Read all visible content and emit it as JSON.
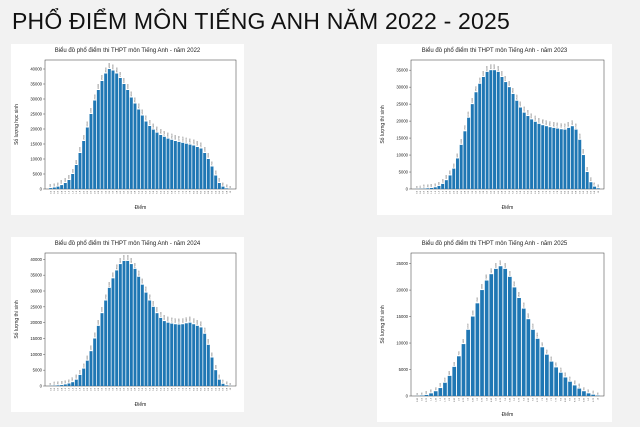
{
  "page_title": "PHỔ ĐIỂM MÔN TIẾNG ANH NĂM 2022 - 2025",
  "colors": {
    "bar": "#1f77b4",
    "background": "#f2f2f2",
    "panel": "#ffffff"
  },
  "chart_data": [
    {
      "type": "bar",
      "title": "Biểu đồ phổ điểm thi THPT môn Tiếng Anh - năm 2022",
      "xlabel": "Điểm",
      "ylabel": "Số lượng học sinh",
      "ylim": [
        0,
        43000
      ],
      "yticks": [
        0,
        5000,
        10000,
        15000,
        20000,
        25000,
        30000,
        35000,
        40000
      ],
      "categories": [
        "0.2",
        "0.4",
        "0.6",
        "0.8",
        "1.0",
        "1.2",
        "1.4",
        "1.6",
        "1.8",
        "2.0",
        "2.2",
        "2.4",
        "2.6",
        "2.8",
        "3.0",
        "3.2",
        "3.4",
        "3.6",
        "3.8",
        "4.0",
        "4.2",
        "4.4",
        "4.6",
        "4.8",
        "5.0",
        "5.2",
        "5.4",
        "5.6",
        "5.8",
        "6.0",
        "6.2",
        "6.4",
        "6.6",
        "6.8",
        "7.0",
        "7.2",
        "7.4",
        "7.6",
        "7.8",
        "8.0",
        "8.2",
        "8.4",
        "8.6",
        "8.8",
        "9.0",
        "9.2",
        "9.4",
        "9.6",
        "9.8",
        "10"
      ],
      "values": [
        300,
        500,
        800,
        1300,
        2000,
        3000,
        5000,
        8000,
        12000,
        16000,
        20500,
        25000,
        29500,
        33000,
        36000,
        38500,
        40000,
        39500,
        38500,
        37000,
        35000,
        33000,
        30500,
        28500,
        26500,
        24500,
        22500,
        21000,
        19800,
        18800,
        18000,
        17400,
        16800,
        16400,
        16000,
        15700,
        15400,
        15100,
        14800,
        14500,
        14000,
        13500,
        12000,
        10000,
        7500,
        4500,
        2000,
        800,
        200,
        30
      ],
      "grid": false
    },
    {
      "type": "bar",
      "title": "Biểu đồ phổ điểm thi THPT môn Tiếng Anh - năm 2023",
      "xlabel": "Điểm",
      "ylabel": "Số lượng thí sinh",
      "ylim": [
        0,
        38000
      ],
      "yticks": [
        0,
        5000,
        10000,
        15000,
        20000,
        25000,
        30000,
        35000
      ],
      "categories": [
        "0.2",
        "0.4",
        "0.6",
        "0.8",
        "1.0",
        "1.2",
        "1.4",
        "1.6",
        "1.8",
        "2.0",
        "2.2",
        "2.4",
        "2.6",
        "2.8",
        "3.0",
        "3.2",
        "3.4",
        "3.6",
        "3.8",
        "4.0",
        "4.2",
        "4.4",
        "4.6",
        "4.8",
        "5.0",
        "5.2",
        "5.4",
        "5.6",
        "5.8",
        "6.0",
        "6.2",
        "6.4",
        "6.6",
        "6.8",
        "7.0",
        "7.2",
        "7.4",
        "7.6",
        "7.8",
        "8.0",
        "8.2",
        "8.4",
        "8.6",
        "8.8",
        "9.0",
        "9.2",
        "9.4",
        "9.6",
        "9.8",
        "10"
      ],
      "values": [
        30,
        60,
        100,
        200,
        300,
        500,
        900,
        1500,
        2600,
        4000,
        6000,
        9000,
        13000,
        17000,
        21000,
        25000,
        28500,
        31000,
        33000,
        34500,
        35000,
        35000,
        34500,
        33000,
        31500,
        30000,
        28000,
        26000,
        24000,
        22500,
        21500,
        20500,
        19800,
        19200,
        18800,
        18500,
        18200,
        18000,
        17800,
        17600,
        17500,
        18000,
        18500,
        17500,
        14500,
        10000,
        5000,
        2000,
        700,
        200
      ],
      "grid": false
    },
    {
      "type": "bar",
      "title": "Biểu đồ phổ điểm thi THPT môn Tiếng Anh - năm 2024",
      "xlabel": "Điểm",
      "ylabel": "Số lượng thí sinh",
      "ylim": [
        0,
        42000
      ],
      "yticks": [
        0,
        5000,
        10000,
        15000,
        20000,
        25000,
        30000,
        35000,
        40000
      ],
      "categories": [
        "0.2",
        "0.4",
        "0.6",
        "0.8",
        "1.0",
        "1.2",
        "1.4",
        "1.6",
        "1.8",
        "2.0",
        "2.2",
        "2.4",
        "2.6",
        "2.8",
        "3.0",
        "3.2",
        "3.4",
        "3.6",
        "3.8",
        "4.0",
        "4.2",
        "4.4",
        "4.6",
        "4.8",
        "5.0",
        "5.2",
        "5.4",
        "5.6",
        "5.8",
        "6.0",
        "6.2",
        "6.4",
        "6.6",
        "6.8",
        "7.0",
        "7.2",
        "7.4",
        "7.6",
        "7.8",
        "8.0",
        "8.2",
        "8.4",
        "8.6",
        "8.8",
        "9.0",
        "9.2",
        "9.4",
        "9.6",
        "9.8",
        "10"
      ],
      "values": [
        50,
        100,
        200,
        300,
        500,
        800,
        1200,
        2000,
        3500,
        5500,
        8000,
        11000,
        15000,
        19000,
        23000,
        27000,
        31000,
        34000,
        36500,
        38500,
        39500,
        39500,
        38500,
        37000,
        34500,
        32000,
        29500,
        27000,
        25000,
        23000,
        21500,
        20500,
        20000,
        19700,
        19500,
        19400,
        19500,
        19800,
        20000,
        19500,
        19000,
        18500,
        16500,
        13000,
        9000,
        5000,
        2000,
        700,
        200,
        30
      ],
      "grid": false
    },
    {
      "type": "bar",
      "title": "Biểu đồ phổ điểm thi THPT môn Tiếng Anh - năm 2025",
      "xlabel": "Điểm",
      "ylabel": "Số lượng thí sinh",
      "ylim": [
        0,
        27000
      ],
      "yticks": [
        0,
        5000,
        10000,
        15000,
        20000,
        25000
      ],
      "categories": [
        "0.25",
        "0.5",
        "0.75",
        "1.0",
        "1.25",
        "1.5",
        "1.75",
        "2.0",
        "2.25",
        "2.5",
        "2.75",
        "3.0",
        "3.25",
        "3.5",
        "3.75",
        "4.0",
        "4.25",
        "4.5",
        "4.75",
        "5.0",
        "5.25",
        "5.5",
        "5.75",
        "6.0",
        "6.25",
        "6.5",
        "6.75",
        "7.0",
        "7.25",
        "7.5",
        "7.75",
        "8.0",
        "8.25",
        "8.5",
        "8.75",
        "9.0",
        "9.25",
        "9.5",
        "9.75",
        "10"
      ],
      "values": [
        20,
        80,
        200,
        500,
        900,
        1500,
        2500,
        3800,
        5500,
        7500,
        9800,
        12500,
        15000,
        17500,
        20000,
        21800,
        23000,
        24000,
        24500,
        24000,
        22500,
        20500,
        18500,
        16500,
        14500,
        12500,
        10800,
        9200,
        7800,
        6500,
        5400,
        4400,
        3500,
        2700,
        2000,
        1400,
        900,
        500,
        250,
        80
      ],
      "grid": false
    }
  ]
}
